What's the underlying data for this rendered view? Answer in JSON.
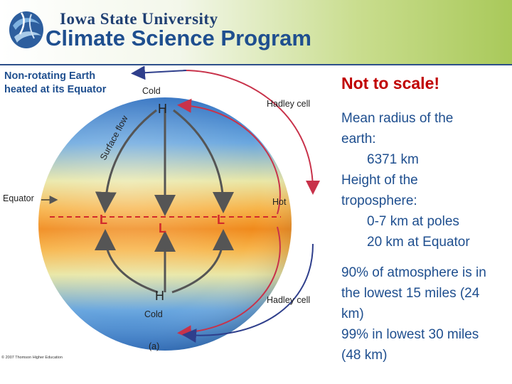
{
  "header": {
    "institution": "Iowa State University",
    "program": "Climate Science Program",
    "logo_icon": "globe-swirl-icon"
  },
  "figure": {
    "title_line1": "Non-rotating Earth",
    "title_line2": "heated at its Equator",
    "label_cold_top": "Cold",
    "label_high_top": "H",
    "label_hadley_top": "Hadley cell",
    "label_surface_flow": "Surface flow",
    "label_equator": "Equator",
    "label_hot": "Hot",
    "label_low_left": "L",
    "label_low_center": "L",
    "label_low_right": "L",
    "label_high_bottom": "H",
    "label_cold_bottom": "Cold",
    "label_hadley_bottom": "Hadley cell",
    "panel_label": "(a)",
    "copyright": "© 2007 Thomson Higher Education",
    "colors": {
      "cold": "#4f8fd4",
      "hot": "#f08a1c",
      "arrow_red": "#c8324a",
      "arrow_blue": "#2f3f8c"
    }
  },
  "sidebar": {
    "scale_note": "Not to scale!",
    "radius_label_1": "Mean radius of the",
    "radius_label_2": "earth:",
    "radius_value": "6371 km",
    "height_label_1": "Height of the",
    "height_label_2": "troposphere:",
    "height_poles": "0-7 km at poles",
    "height_equator": "20 km at Equator",
    "stat1_line1": "90% of atmosphere is in",
    "stat1_line2": "the lowest 15 miles (24",
    "stat1_line3": "km)",
    "stat2_line1": "99% in lowest 30 miles",
    "stat2_line2": "(48 km)"
  }
}
